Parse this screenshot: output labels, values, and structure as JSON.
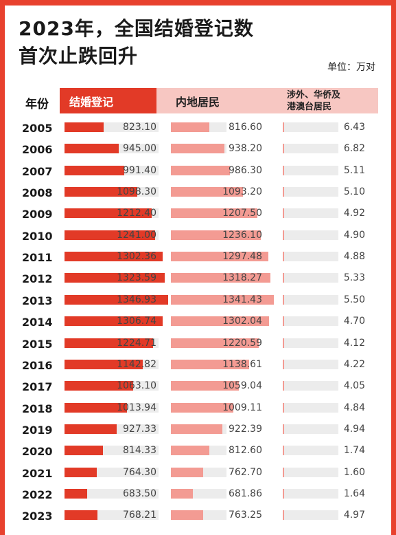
{
  "title_line1": "2023年，全国结婚登记数",
  "title_line2": "首次止跌回升",
  "unit": "单位：万对",
  "headers": {
    "year": "年份",
    "total": "结婚登记",
    "mainland": "内地居民",
    "foreign_line1": "涉外、华侨及",
    "foreign_line2": "港澳台居民"
  },
  "colors": {
    "background": "#e8412e",
    "total_bar": "#e23a27",
    "mainland_bar": "#f39b93",
    "header_pink": "#f7c7c2",
    "track": "#ececec"
  },
  "chart_data": {
    "type": "table",
    "categories": [
      "2005",
      "2006",
      "2007",
      "2008",
      "2009",
      "2010",
      "2011",
      "2012",
      "2013",
      "2014",
      "2015",
      "2016",
      "2017",
      "2018",
      "2019",
      "2020",
      "2021",
      "2022",
      "2023"
    ],
    "series": [
      {
        "name": "结婚登记",
        "values": [
          823.1,
          945.0,
          991.4,
          1098.3,
          1212.4,
          1241.0,
          1302.36,
          1323.59,
          1346.93,
          1306.74,
          1224.71,
          1142.82,
          1063.1,
          1013.94,
          927.33,
          814.33,
          764.3,
          683.5,
          768.21
        ]
      },
      {
        "name": "内地居民",
        "values": [
          816.6,
          938.2,
          986.3,
          1093.2,
          1207.5,
          1236.1,
          1297.48,
          1318.27,
          1341.43,
          1302.04,
          1220.59,
          1138.61,
          1059.04,
          1009.11,
          922.39,
          812.6,
          762.7,
          681.86,
          763.25
        ]
      },
      {
        "name": "涉外、华侨及港澳台居民",
        "values": [
          6.43,
          6.82,
          5.11,
          5.1,
          4.92,
          4.9,
          4.88,
          5.33,
          5.5,
          4.7,
          4.12,
          4.22,
          4.05,
          4.84,
          4.94,
          1.74,
          1.6,
          1.64,
          4.97
        ]
      }
    ]
  }
}
